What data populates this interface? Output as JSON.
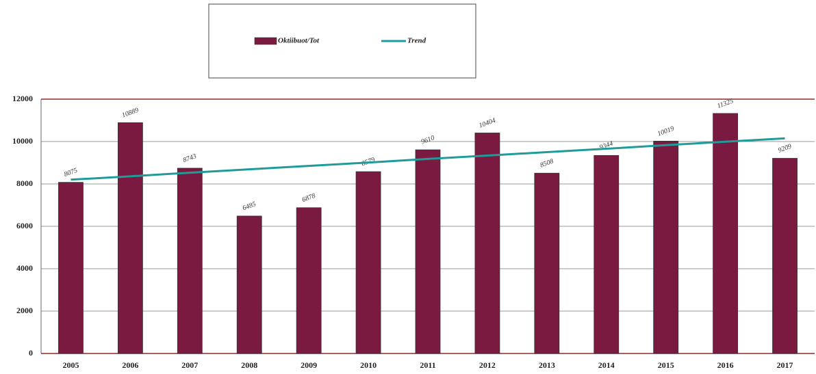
{
  "chart_data": {
    "type": "bar",
    "categories": [
      "2005",
      "2006",
      "2007",
      "2008",
      "2009",
      "2010",
      "2011",
      "2012",
      "2013",
      "2014",
      "2015",
      "2016",
      "2017"
    ],
    "series": [
      {
        "name": "Oktiibuot/Tot",
        "color": "#7b1a40",
        "values": [
          8075,
          10889,
          8743,
          6485,
          6878,
          8579,
          9610,
          10404,
          8508,
          9344,
          10019,
          11325,
          9209
        ]
      },
      {
        "name": "Trend",
        "type": "line",
        "color": "#1f9c9a",
        "values": [
          8200,
          8360,
          8530,
          8690,
          8850,
          9010,
          9180,
          9340,
          9500,
          9660,
          9830,
          9990,
          10150
        ]
      }
    ],
    "ylim": [
      0,
      12000
    ],
    "yticks": [
      0,
      2000,
      4000,
      6000,
      8000,
      10000,
      12000
    ],
    "grid": true
  }
}
